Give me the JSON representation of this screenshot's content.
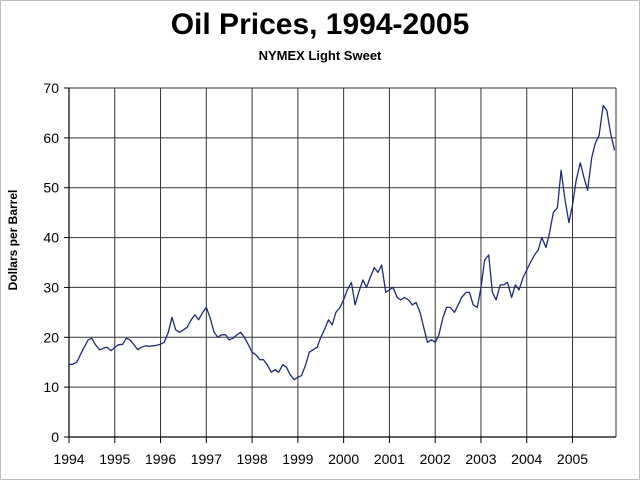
{
  "chart_data": {
    "type": "line",
    "title": "Oil Prices, 1994-2005",
    "subtitle": "NYMEX Light Sweet",
    "xlabel": "",
    "ylabel": "Dollars per Barrel",
    "xlim": [
      1994,
      2005.95
    ],
    "ylim": [
      0,
      70
    ],
    "x_ticks": [
      "1994",
      "1995",
      "1996",
      "1997",
      "1998",
      "1999",
      "2000",
      "2001",
      "2002",
      "2003",
      "2004",
      "2005"
    ],
    "y_ticks": [
      "0",
      "10",
      "20",
      "30",
      "40",
      "50",
      "60",
      "70"
    ],
    "grid": true,
    "legend": "none",
    "colors": {
      "series": "#1f2a7a",
      "grid": "#333333",
      "axis": "#000000"
    },
    "series": [
      {
        "x": [
          1994.0,
          1994.08,
          1994.17,
          1994.25,
          1994.33,
          1994.42,
          1994.5,
          1994.58,
          1994.67,
          1994.75,
          1994.83,
          1994.92,
          1995.0,
          1995.08,
          1995.17,
          1995.25,
          1995.33,
          1995.42,
          1995.5,
          1995.58,
          1995.67,
          1995.75,
          1995.83,
          1995.92,
          1996.0,
          1996.08,
          1996.17,
          1996.25,
          1996.33,
          1996.42,
          1996.5,
          1996.58,
          1996.67,
          1996.75,
          1996.83,
          1996.92,
          1997.0,
          1997.08,
          1997.17,
          1997.25,
          1997.33,
          1997.42,
          1997.5,
          1997.58,
          1997.67,
          1997.75,
          1997.83,
          1997.92,
          1998.0,
          1998.08,
          1998.17,
          1998.25,
          1998.33,
          1998.42,
          1998.5,
          1998.58,
          1998.67,
          1998.75,
          1998.83,
          1998.92,
          1999.0,
          1999.08,
          1999.17,
          1999.25,
          1999.33,
          1999.42,
          1999.5,
          1999.58,
          1999.67,
          1999.75,
          1999.83,
          1999.92,
          2000.0,
          2000.08,
          2000.17,
          2000.25,
          2000.33,
          2000.42,
          2000.5,
          2000.58,
          2000.67,
          2000.75,
          2000.83,
          2000.92,
          2001.0,
          2001.08,
          2001.17,
          2001.25,
          2001.33,
          2001.42,
          2001.5,
          2001.58,
          2001.67,
          2001.75,
          2001.83,
          2001.92,
          2002.0,
          2002.08,
          2002.17,
          2002.25,
          2002.33,
          2002.42,
          2002.5,
          2002.58,
          2002.67,
          2002.75,
          2002.83,
          2002.92,
          2003.0,
          2003.08,
          2003.17,
          2003.25,
          2003.33,
          2003.42,
          2003.5,
          2003.58,
          2003.67,
          2003.75,
          2003.83,
          2003.92,
          2004.0,
          2004.08,
          2004.17,
          2004.25,
          2004.33,
          2004.42,
          2004.5,
          2004.58,
          2004.67,
          2004.75,
          2004.83,
          2004.92,
          2005.0,
          2005.08,
          2005.17,
          2005.25,
          2005.33,
          2005.42,
          2005.5,
          2005.58,
          2005.67,
          2005.75,
          2005.83,
          2005.92
        ],
        "values": [
          14.5,
          14.6,
          15.0,
          16.5,
          18.0,
          19.5,
          19.8,
          18.5,
          17.5,
          17.8,
          18.0,
          17.3,
          18.0,
          18.5,
          18.6,
          19.8,
          19.5,
          18.5,
          17.5,
          18.0,
          18.3,
          18.2,
          18.3,
          18.4,
          18.6,
          19.0,
          21.0,
          24.0,
          21.5,
          21.0,
          21.5,
          22.0,
          23.5,
          24.5,
          23.5,
          25.0,
          26.0,
          24.0,
          21.0,
          20.0,
          20.5,
          20.5,
          19.5,
          19.8,
          20.5,
          21.0,
          20.0,
          18.5,
          17.0,
          16.5,
          15.5,
          15.5,
          14.5,
          13.0,
          13.5,
          13.0,
          14.5,
          14.0,
          12.5,
          11.5,
          12.0,
          12.3,
          14.5,
          17.0,
          17.5,
          18.0,
          20.0,
          21.5,
          23.5,
          22.5,
          25.0,
          26.0,
          27.5,
          29.5,
          31.0,
          26.5,
          29.0,
          31.5,
          30.0,
          32.0,
          34.0,
          33.0,
          34.5,
          29.0,
          29.5,
          30.0,
          28.0,
          27.5,
          28.0,
          27.5,
          26.5,
          27.0,
          25.0,
          22.0,
          19.0,
          19.5,
          19.0,
          20.5,
          24.0,
          26.0,
          26.0,
          25.0,
          26.5,
          28.0,
          29.0,
          29.0,
          26.5,
          26.0,
          30.0,
          35.5,
          36.5,
          29.0,
          27.5,
          30.5,
          30.5,
          31.0,
          28.0,
          30.5,
          29.5,
          32.0,
          33.5,
          35.0,
          36.5,
          37.5,
          40.0,
          38.0,
          41.0,
          45.0,
          46.0,
          53.5,
          48.0,
          43.0,
          46.5,
          51.5,
          55.0,
          52.0,
          49.5,
          56.0,
          59.0,
          60.5,
          66.5,
          65.5,
          61.0,
          57.5
        ]
      }
    ]
  }
}
